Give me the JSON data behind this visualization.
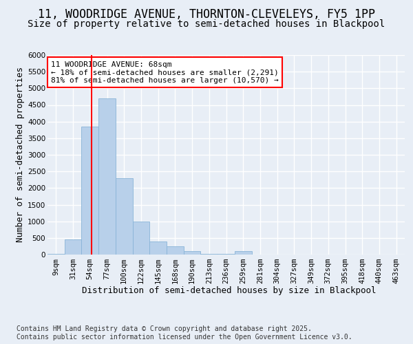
{
  "title_line1": "11, WOODRIDGE AVENUE, THORNTON-CLEVELEYS, FY5 1PP",
  "title_line2": "Size of property relative to semi-detached houses in Blackpool",
  "xlabel": "Distribution of semi-detached houses by size in Blackpool",
  "ylabel": "Number of semi-detached properties",
  "footnote": "Contains HM Land Registry data © Crown copyright and database right 2025.\nContains public sector information licensed under the Open Government Licence v3.0.",
  "bin_labels": [
    "9sqm",
    "31sqm",
    "54sqm",
    "77sqm",
    "100sqm",
    "122sqm",
    "145sqm",
    "168sqm",
    "190sqm",
    "213sqm",
    "236sqm",
    "259sqm",
    "281sqm",
    "304sqm",
    "327sqm",
    "349sqm",
    "372sqm",
    "395sqm",
    "418sqm",
    "440sqm",
    "463sqm"
  ],
  "bar_values": [
    30,
    450,
    3850,
    4700,
    2300,
    1000,
    400,
    250,
    100,
    30,
    15,
    100,
    0,
    0,
    0,
    0,
    0,
    0,
    0,
    0,
    0
  ],
  "bar_color": "#b8d0ea",
  "bar_edge_color": "#89b4d8",
  "vline_color": "red",
  "annotation_text": "11 WOODRIDGE AVENUE: 68sqm\n← 18% of semi-detached houses are smaller (2,291)\n81% of semi-detached houses are larger (10,570) →",
  "annotation_box_color": "white",
  "annotation_box_edge": "red",
  "ylim": [
    0,
    6000
  ],
  "yticks": [
    0,
    500,
    1000,
    1500,
    2000,
    2500,
    3000,
    3500,
    4000,
    4500,
    5000,
    5500,
    6000
  ],
  "bg_color": "#e8eef6",
  "plot_bg_color": "#e8eef6",
  "grid_color": "white",
  "title_fontsize": 12,
  "subtitle_fontsize": 10,
  "axis_label_fontsize": 9,
  "tick_fontsize": 7.5,
  "annotation_fontsize": 8,
  "footnote_fontsize": 7
}
